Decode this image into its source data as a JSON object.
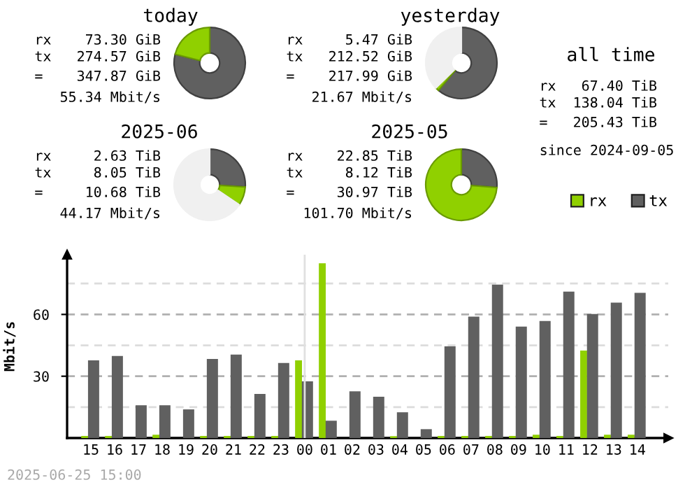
{
  "chart_data": [
    {
      "type": "donut",
      "title": "today",
      "categories": [
        null,
        null
      ],
      "values": [
        78.93,
        21.07
      ],
      "colors": [
        "#606060",
        "#90d000"
      ],
      "annotations": [
        "rx    73.30 GiB",
        "tx   274.57 GiB",
        "=    347.87 GiB",
        "55.34 Mbit/s"
      ]
    },
    {
      "type": "donut",
      "title": "yesterday",
      "categories": [
        null,
        null,
        null
      ],
      "values": [
        61.09,
        1.57,
        37.34
      ],
      "colors": [
        "#606060",
        "#90d000",
        "#f0f0f0"
      ],
      "annotations": [
        "rx     5.47 GiB",
        "tx   212.52 GiB",
        "=    217.99 GiB",
        "21.67 Mbit/s"
      ]
    },
    {
      "type": "donut",
      "title": "2025-06",
      "categories": [
        null,
        null,
        null
      ],
      "values": [
        25.99,
        8.49,
        65.52
      ],
      "colors": [
        "#606060",
        "#90d000",
        "#f0f0f0"
      ],
      "annotations": [
        "rx     2.63 TiB",
        "tx     8.05 TiB",
        "=     10.68 TiB",
        "44.17 Mbit/s"
      ]
    },
    {
      "type": "donut",
      "title": "2025-05",
      "categories": [
        null,
        null
      ],
      "values": [
        26.22,
        73.78
      ],
      "colors": [
        "#606060",
        "#90d000"
      ],
      "annotations": [
        "rx    22.85 TiB",
        "tx     8.12 TiB",
        "=     30.97 TiB",
        "101.70 Mbit/s"
      ]
    },
    {
      "type": "other",
      "title": "all time",
      "annotations": [
        "rx   67.40 TiB",
        "tx  138.04 TiB",
        "=   205.43 TiB",
        "since 2024-09-05"
      ]
    },
    {
      "type": "bar",
      "ylabel": "Mbit/s",
      "categories": [
        "15",
        "16",
        "17",
        "18",
        "19",
        "20",
        "21",
        "22",
        "23",
        "00",
        "01",
        "02",
        "03",
        "04",
        "05",
        "06",
        "07",
        "08",
        "09",
        "10",
        "11",
        "12",
        "13",
        "14"
      ],
      "series": [
        {
          "name": "rx",
          "color": "#90d000",
          "values": [
            1,
            1,
            0,
            1.6,
            0,
            1,
            1,
            1,
            1,
            37.7,
            84.8,
            0,
            0,
            0.9,
            0,
            1,
            1,
            1,
            1,
            1.6,
            1,
            42.5,
            1.6,
            1.6
          ]
        },
        {
          "name": "tx",
          "color": "#606060",
          "values": [
            37.7,
            39.8,
            15.9,
            15.9,
            13.9,
            38.4,
            40.5,
            21.4,
            36.4,
            27.5,
            8.4,
            22.7,
            20.0,
            12.5,
            4.3,
            44.5,
            58.9,
            74.5,
            54.1,
            56.8,
            71.1,
            60.2,
            65.7,
            70.5
          ]
        }
      ],
      "ylim": [
        0,
        89
      ],
      "yticks": [
        {
          "value": 15,
          "label": null
        },
        30,
        {
          "value": 45,
          "label": null
        },
        60,
        {
          "value": 75,
          "label": null
        }
      ],
      "grid": "y",
      "legend": "top right",
      "ref_lines": [
        {
          "axis": "x",
          "value": "00",
          "color": "#e0e0e0"
        }
      ],
      "annotations": [
        "2025-06-25 15:00"
      ]
    }
  ]
}
